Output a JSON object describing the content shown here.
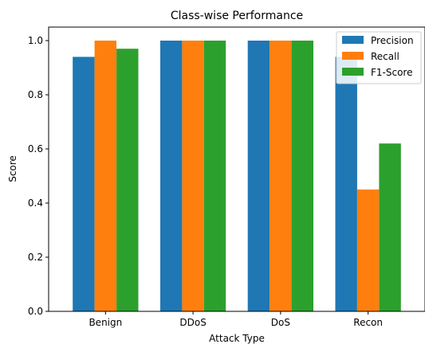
{
  "chart_data": {
    "type": "bar",
    "title": "Class-wise Performance",
    "xlabel": "Attack Type",
    "ylabel": "Score",
    "categories": [
      "Benign",
      "DDoS",
      "DoS",
      "Recon"
    ],
    "series": [
      {
        "name": "Precision",
        "color": "#1f77b4",
        "values": [
          0.94,
          1.0,
          1.0,
          0.94
        ]
      },
      {
        "name": "Recall",
        "color": "#ff7f0e",
        "values": [
          1.0,
          1.0,
          1.0,
          0.45
        ]
      },
      {
        "name": "F1-Score",
        "color": "#2ca02c",
        "values": [
          0.97,
          1.0,
          1.0,
          0.62
        ]
      }
    ],
    "ylim": [
      0,
      1.05
    ],
    "yticks": [
      "0.0",
      "0.2",
      "0.4",
      "0.6",
      "0.8",
      "1.0"
    ],
    "grid": false,
    "legend_position": "top-right"
  }
}
